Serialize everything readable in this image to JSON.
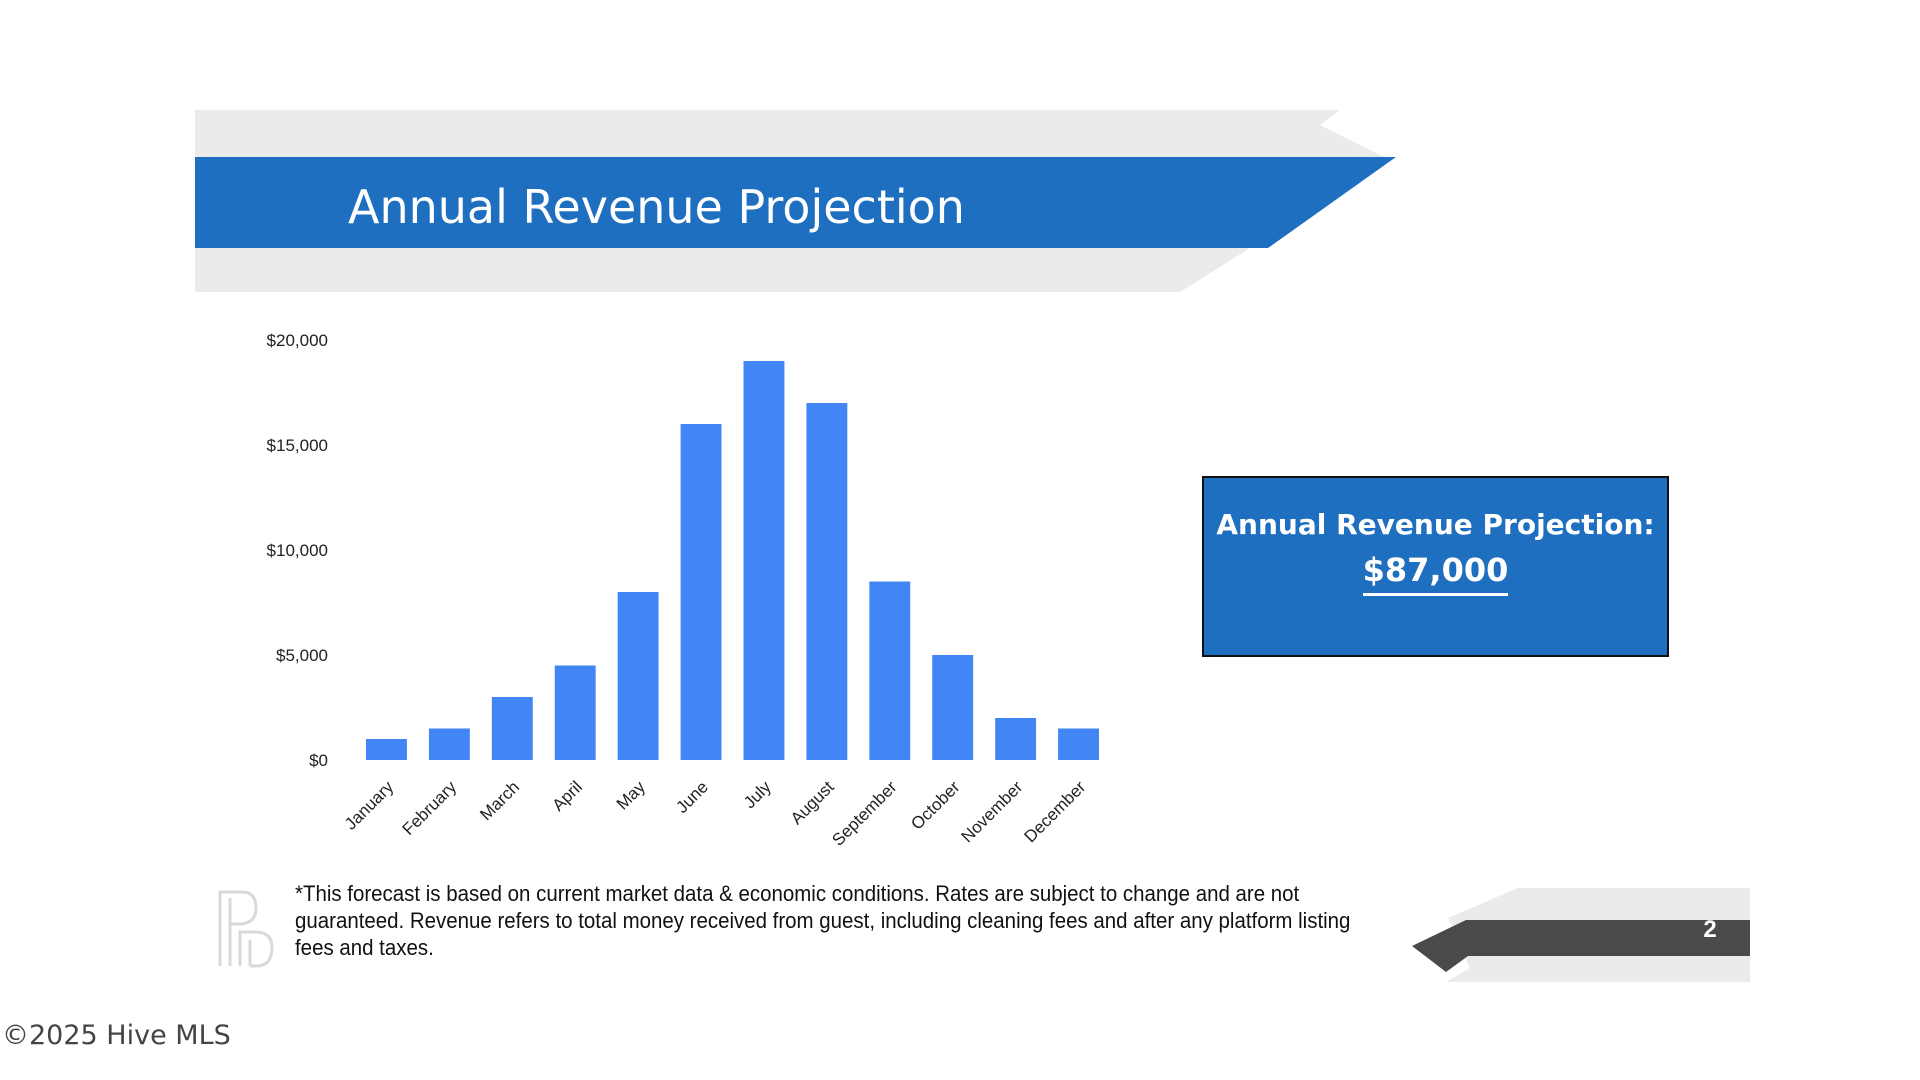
{
  "slide": {
    "title": "Annual Revenue Projection",
    "page_number": "2",
    "accent_color": "#1f6fc0",
    "band_color": "#ebebeb",
    "footer_tab_color": "#4a4a4a"
  },
  "summary": {
    "label": "Annual Revenue Projection:",
    "value": "$87,000"
  },
  "disclaimer": "*This forecast is based on current market data & economic conditions. Rates are subject to change and are not guaranteed. Revenue refers to total money received from guest, including cleaning fees and after any platform listing fees and taxes.",
  "logo_icon": "rb-monogram-icon",
  "watermark": "©2025 Hive MLS",
  "chart_data": {
    "type": "bar",
    "categories": [
      "January",
      "February",
      "March",
      "April",
      "May",
      "June",
      "July",
      "August",
      "September",
      "October",
      "November",
      "December"
    ],
    "values": [
      1000,
      1500,
      3000,
      4500,
      8000,
      16000,
      19000,
      17000,
      8500,
      5000,
      2000,
      1500
    ],
    "y_ticks": [
      0,
      5000,
      10000,
      15000,
      20000
    ],
    "y_tick_labels": [
      "$0",
      "$5,000",
      "$10,000",
      "$15,000",
      "$20,000"
    ],
    "ylim": [
      0,
      20000
    ],
    "grid": false,
    "legend": "none",
    "bar_color": "#4285f4",
    "title": "",
    "xlabel": "",
    "ylabel": ""
  }
}
